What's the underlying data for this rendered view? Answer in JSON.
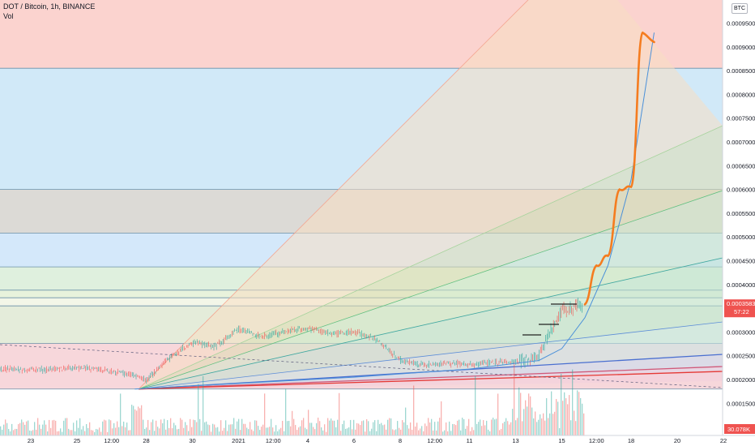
{
  "header": {
    "title": "DOT / Bitcoin, 1h, BINANCE",
    "volume_label": "Vol",
    "currency_button": "BTC"
  },
  "price_scale": {
    "ticks": [
      "0.00095000",
      "0.00090000",
      "0.00085000",
      "0.00080000",
      "0.00075000",
      "0.00070000",
      "0.00065000",
      "0.00060000",
      "0.00055000",
      "0.00050000",
      "0.00045000",
      "0.00040000",
      "0.00030000",
      "0.00025000",
      "0.00020000",
      "0.00015000"
    ],
    "last_price": "0.00035833",
    "countdown": "57:22",
    "volume_label": "30.078K",
    "last_price_color": "#ef5350",
    "volume_label_color": "#ef5350"
  },
  "time_scale": {
    "ticks": [
      "23",
      "25",
      "12:00",
      "28",
      "30",
      "2021",
      "12:00",
      "4",
      "6",
      "8",
      "12:00",
      "11",
      "13",
      "15",
      "12:00",
      "18",
      "20",
      "22"
    ]
  },
  "colors": {
    "fib_fan_bands": [
      "#fbd3cf",
      "#f8dec2",
      "#dedcb0",
      "#cfe7c6",
      "#bfe4cf",
      "#c7e7e3",
      "#c4dff1",
      "#dcd5ea",
      "#f2d0dd"
    ],
    "fib_retracement_bands": [
      "#d1e9f8",
      "#dcdad6",
      "#d4e8fa",
      "#dff0de",
      "#e8f2dc",
      "#f3f6e8",
      "#e4ecda",
      "#f7d7db",
      "#ffffff"
    ],
    "projection_path": "#f57c1f",
    "curve": "#4a90d9",
    "candles_up": "#26a69a",
    "candles_down": "#ef5350"
  },
  "chart_data": {
    "type": "line",
    "title": "DOT / Bitcoin, 1h, BINANCE",
    "xlabel": "",
    "ylabel": "",
    "y_scale": "price (BTC)",
    "ylim": [
      0.00013,
      0.00098
    ],
    "series": [
      {
        "name": "",
        "kind": "price",
        "x": [
          "Dec 21",
          "Dec 23",
          "Dec 25",
          "Dec 26",
          "Dec 27 12:00",
          "Dec 28",
          "Dec 29",
          "Dec 30",
          "Dec 31",
          "Jan 1",
          "Jan 2",
          "Jan 3",
          "Jan 4",
          "Jan 5",
          "Jan 6",
          "Jan 7",
          "Jan 8",
          "Jan 9",
          "Jan 10",
          "Jan 11",
          "Jan 12",
          "Jan 13",
          "Jan 14",
          "Jan 14 12:00",
          "Jan 15",
          "Jan 16"
        ],
        "values": [
          0.000222,
          0.00022,
          0.000224,
          0.000221,
          0.000208,
          0.000198,
          0.000245,
          0.000278,
          0.00027,
          0.000305,
          0.00029,
          0.0003,
          0.000308,
          0.000296,
          0.0003,
          0.000285,
          0.00024,
          0.00023,
          0.000235,
          0.000232,
          0.000236,
          0.000238,
          0.00025,
          0.0003,
          0.000345,
          0.000358
        ]
      },
      {
        "name": "",
        "kind": "projection",
        "x": [
          "Jan 16",
          "Jan 16 12:00",
          "Jan 17",
          "Jan 17 12:00",
          "Jan 18",
          "Jan 18 12:00",
          "Jan 19"
        ],
        "values": [
          0.000358,
          0.00044,
          0.00046,
          0.0006,
          0.000605,
          0.00093,
          0.00091
        ]
      },
      {
        "name": "",
        "kind": "curve",
        "x": [
          "Dec 27 12:00",
          "Jan 6",
          "Jan 11",
          "Jan 14",
          "Jan 15",
          "Jan 16",
          "Jan 17",
          "Jan 18",
          "Jan 19"
        ],
        "values": [
          0.00018,
          0.000205,
          0.000222,
          0.00024,
          0.000265,
          0.00033,
          0.00044,
          0.00062,
          0.00093
        ]
      }
    ],
    "fib_retracement_levels": [
      0.00018,
      0.000276,
      0.000355,
      0.000372,
      0.000388,
      0.000437,
      0.000508,
      0.0006,
      0.000855
    ],
    "volume": {
      "label": "Vol",
      "last": "30.078K"
    }
  }
}
